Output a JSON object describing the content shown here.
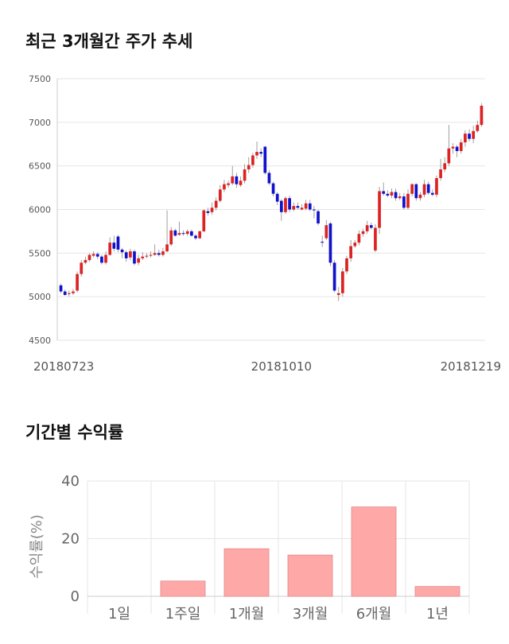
{
  "section1_title": "최근 3개월간 주가 추세",
  "section2_title": "기간별 수익률",
  "chart_data": [
    {
      "type": "candlestick",
      "ylim": [
        4500,
        7500
      ],
      "yticks": [
        4500,
        5000,
        5500,
        6000,
        6500,
        7000,
        7500
      ],
      "xtick_labels": [
        {
          "label": "20180723",
          "index": 0
        },
        {
          "label": "20181010",
          "index": 54
        },
        {
          "label": "20181219",
          "index": 103
        }
      ],
      "up_color": "#dd2222",
      "down_color": "#1111cc",
      "grid": true,
      "candles": [
        [
          5130,
          5060,
          5150,
          5040
        ],
        [
          5060,
          5020,
          5080,
          5010
        ],
        [
          5030,
          5040,
          5070,
          5000
        ],
        [
          5040,
          5060,
          5090,
          5020
        ],
        [
          5070,
          5260,
          5290,
          5050
        ],
        [
          5260,
          5390,
          5420,
          5230
        ],
        [
          5390,
          5420,
          5460,
          5370
        ],
        [
          5420,
          5480,
          5500,
          5400
        ],
        [
          5470,
          5490,
          5520,
          5450
        ],
        [
          5490,
          5460,
          5510,
          5430
        ],
        [
          5460,
          5390,
          5480,
          5370
        ],
        [
          5390,
          5480,
          5520,
          5370
        ],
        [
          5480,
          5620,
          5680,
          5470
        ],
        [
          5620,
          5550,
          5700,
          5520
        ],
        [
          5690,
          5540,
          5710,
          5510
        ],
        [
          5540,
          5510,
          5560,
          5440
        ],
        [
          5510,
          5440,
          5530,
          5400
        ],
        [
          5450,
          5520,
          5550,
          5420
        ],
        [
          5520,
          5380,
          5540,
          5360
        ],
        [
          5390,
          5440,
          5480,
          5360
        ],
        [
          5440,
          5460,
          5510,
          5420
        ],
        [
          5460,
          5470,
          5500,
          5440
        ],
        [
          5470,
          5480,
          5520,
          5450
        ],
        [
          5480,
          5500,
          5600,
          5470
        ],
        [
          5500,
          5480,
          5540,
          5460
        ],
        [
          5480,
          5520,
          5560,
          5460
        ],
        [
          5520,
          5600,
          5990,
          5510
        ],
        [
          5600,
          5760,
          5800,
          5580
        ],
        [
          5760,
          5700,
          5780,
          5690
        ],
        [
          5710,
          5730,
          5860,
          5700
        ],
        [
          5730,
          5720,
          5760,
          5700
        ],
        [
          5720,
          5750,
          5770,
          5700
        ],
        [
          5750,
          5700,
          5770,
          5690
        ],
        [
          5700,
          5670,
          5720,
          5650
        ],
        [
          5670,
          5750,
          5760,
          5660
        ],
        [
          5750,
          5990,
          6000,
          5740
        ],
        [
          5980,
          5960,
          6020,
          5930
        ],
        [
          5970,
          6020,
          6080,
          5940
        ],
        [
          6020,
          6100,
          6140,
          5990
        ],
        [
          6100,
          6230,
          6280,
          6080
        ],
        [
          6230,
          6290,
          6340,
          6200
        ],
        [
          6280,
          6300,
          6330,
          6250
        ],
        [
          6300,
          6380,
          6500,
          6280
        ],
        [
          6380,
          6290,
          6420,
          6250
        ],
        [
          6280,
          6330,
          6380,
          6260
        ],
        [
          6330,
          6460,
          6520,
          6300
        ],
        [
          6460,
          6510,
          6600,
          6420
        ],
        [
          6510,
          6620,
          6650,
          6480
        ],
        [
          6620,
          6660,
          6780,
          6580
        ],
        [
          6660,
          6640,
          6700,
          6600
        ],
        [
          6720,
          6420,
          6730,
          6400
        ],
        [
          6420,
          6300,
          6450,
          6280
        ],
        [
          6300,
          6180,
          6320,
          6150
        ],
        [
          6180,
          6090,
          6200,
          6050
        ],
        [
          6100,
          5970,
          6120,
          5870
        ],
        [
          5970,
          6130,
          6150,
          5950
        ],
        [
          6130,
          6000,
          6160,
          5970
        ],
        [
          6000,
          6040,
          6080,
          5980
        ],
        [
          6040,
          6020,
          6080,
          6000
        ],
        [
          6000,
          6020,
          6060,
          5990
        ],
        [
          6010,
          6070,
          6110,
          5990
        ],
        [
          6070,
          6000,
          6110,
          5980
        ],
        [
          6000,
          5990,
          6040,
          5900
        ],
        [
          5980,
          5840,
          6000,
          5820
        ],
        [
          5630,
          5620,
          5700,
          5570
        ],
        [
          5670,
          5820,
          5880,
          5650
        ],
        [
          5840,
          5390,
          5860,
          5350
        ],
        [
          5390,
          5070,
          5420,
          5050
        ],
        [
          5020,
          5040,
          5110,
          4950
        ],
        [
          5040,
          5290,
          5330,
          5000
        ],
        [
          5290,
          5440,
          5470,
          5260
        ],
        [
          5440,
          5580,
          5650,
          5400
        ],
        [
          5580,
          5620,
          5650,
          5560
        ],
        [
          5620,
          5720,
          5760,
          5590
        ],
        [
          5720,
          5750,
          5780,
          5690
        ],
        [
          5750,
          5820,
          5870,
          5720
        ],
        [
          5820,
          5790,
          5850,
          5770
        ],
        [
          5530,
          5790,
          5830,
          5510
        ],
        [
          5790,
          6210,
          6260,
          5720
        ],
        [
          6210,
          6180,
          6310,
          6160
        ],
        [
          6180,
          6160,
          6220,
          6140
        ],
        [
          6160,
          6200,
          6240,
          6130
        ],
        [
          6200,
          6130,
          6240,
          6100
        ],
        [
          6130,
          6150,
          6190,
          6110
        ],
        [
          6150,
          6020,
          6190,
          6000
        ],
        [
          6020,
          6180,
          6230,
          6000
        ],
        [
          6180,
          6290,
          6300,
          6150
        ],
        [
          6290,
          6130,
          6300,
          6100
        ],
        [
          6130,
          6170,
          6200,
          6100
        ],
        [
          6170,
          6290,
          6340,
          6140
        ],
        [
          6290,
          6190,
          6320,
          6170
        ],
        [
          6190,
          6170,
          6230,
          6150
        ],
        [
          6170,
          6360,
          6390,
          6140
        ],
        [
          6360,
          6460,
          6580,
          6330
        ],
        [
          6460,
          6530,
          6600,
          6430
        ],
        [
          6530,
          6700,
          6970,
          6500
        ],
        [
          6700,
          6720,
          6760,
          6640
        ],
        [
          6720,
          6670,
          6740,
          6600
        ],
        [
          6670,
          6770,
          6810,
          6640
        ],
        [
          6770,
          6870,
          6910,
          6720
        ],
        [
          6870,
          6810,
          6920,
          6780
        ],
        [
          6810,
          6900,
          6960,
          6760
        ],
        [
          6900,
          6970,
          7020,
          6880
        ],
        [
          6970,
          7190,
          7220,
          6950
        ]
      ]
    },
    {
      "type": "bar",
      "categories": [
        "1일",
        "1주일",
        "1개월",
        "3개월",
        "6개월",
        "1년"
      ],
      "values": [
        0,
        5.3,
        16.5,
        14.3,
        31.0,
        3.4
      ],
      "ylabel": "수익률(%)",
      "ylim": [
        0,
        40
      ],
      "yticks": [
        0,
        20,
        40
      ],
      "bar_color": "#ffa8a8",
      "bar_edge": "#e08888",
      "grid": true
    }
  ]
}
